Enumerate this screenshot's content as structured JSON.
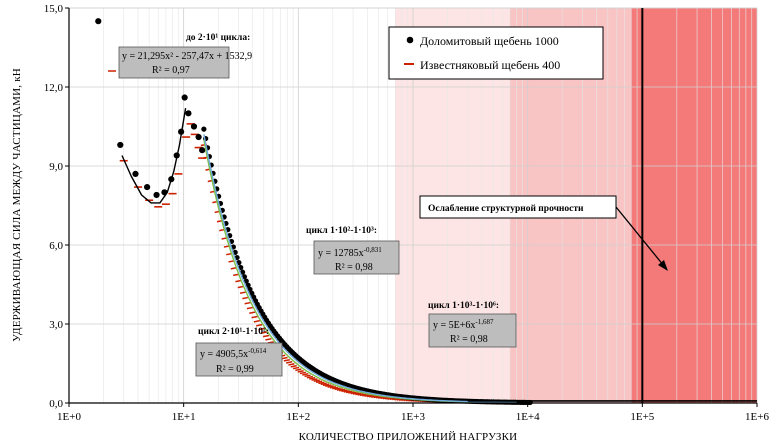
{
  "chart_data": {
    "type": "scatter",
    "title": "",
    "xlabel": "КОЛИЧЕСТВО ПРИЛОЖЕНИЙ НАГРУЗКИ",
    "ylabel": "УДЕРЖИВАЮЩАЯ СИЛА МЕЖДУ ЧАСТИЦАМИ, кН",
    "x_scale": "log",
    "xlim": [
      1,
      1000000
    ],
    "ylim": [
      0,
      15
    ],
    "x_ticks": [
      "1E+0",
      "1E+1",
      "1E+2",
      "1E+3",
      "1E+4",
      "1E+5",
      "1E+6"
    ],
    "y_ticks": [
      "0,0",
      "3,0",
      "6,0",
      "9,0",
      "12,0",
      "15,0"
    ],
    "grid": true,
    "legend": [
      {
        "label": "Доломитовый щебень 1000",
        "marker": "dot",
        "color": "#000000"
      },
      {
        "label": "Известняковый щебень 400",
        "marker": "dash",
        "color": "#cc2200"
      }
    ],
    "series": [
      {
        "name": "Доломитовый щебень 1000",
        "color": "#000000",
        "points": [
          [
            1.8,
            14.5
          ],
          [
            2.8,
            9.8
          ],
          [
            3.8,
            8.7
          ],
          [
            4.8,
            8.2
          ],
          [
            5.8,
            7.9
          ],
          [
            6.8,
            8.0
          ],
          [
            7.8,
            8.5
          ],
          [
            8.7,
            9.4
          ],
          [
            9.5,
            10.3
          ],
          [
            10.2,
            11.6
          ],
          [
            11,
            11.0
          ],
          [
            12.3,
            10.5
          ],
          [
            13.5,
            10.1
          ],
          [
            14.5,
            9.6
          ]
        ],
        "decay": {
          "a": 10.4,
          "x0": 15,
          "p": 0.95
        }
      },
      {
        "name": "Известняковый щебень 400",
        "color": "#cc2200",
        "points": [
          [
            3.0,
            9.2
          ],
          [
            4.0,
            8.2
          ],
          [
            5.0,
            7.7
          ],
          [
            6.0,
            7.45
          ],
          [
            7.0,
            7.55
          ],
          [
            8.0,
            7.95
          ],
          [
            9.0,
            8.7
          ],
          [
            10.5,
            10.1
          ],
          [
            11.5,
            10.6
          ],
          [
            12.5,
            10.2
          ],
          [
            13.5,
            9.7
          ],
          [
            14.5,
            9.3
          ]
        ],
        "decay": {
          "a": 9.8,
          "x0": 15,
          "p": 1.08
        }
      }
    ],
    "annotations": [
      {
        "title": "до 2·10¹ цикла:",
        "line1": "y = 21,295x² - 257,47x + 1532,9",
        "line2": "R² = 0,97"
      },
      {
        "title": "цикл 2·10¹-1·10²:",
        "line1": "y = 4905,5x",
        "exp": "-0,614",
        "line2": "R² = 0,99"
      },
      {
        "title": "цикл 1·10²-1·10³:",
        "line1": "y = 12785x",
        "exp": "-0,831",
        "line2": "R² = 0,98"
      },
      {
        "title": "цикл 1·10³-1·10⁶:",
        "line1": "y = 5E+6x",
        "exp": "-1,687",
        "line2": "R² = 0,98"
      },
      {
        "title": "Ослабление структурной прочности"
      }
    ],
    "zones": [
      {
        "from": 700,
        "to": 7000,
        "color": "#fde5e5"
      },
      {
        "from": 7000,
        "to": 80000,
        "color": "#f9c4c4"
      },
      {
        "from": 80000,
        "to": 1000000,
        "color": "#f47a7a"
      }
    ],
    "vline_x": 100000
  }
}
